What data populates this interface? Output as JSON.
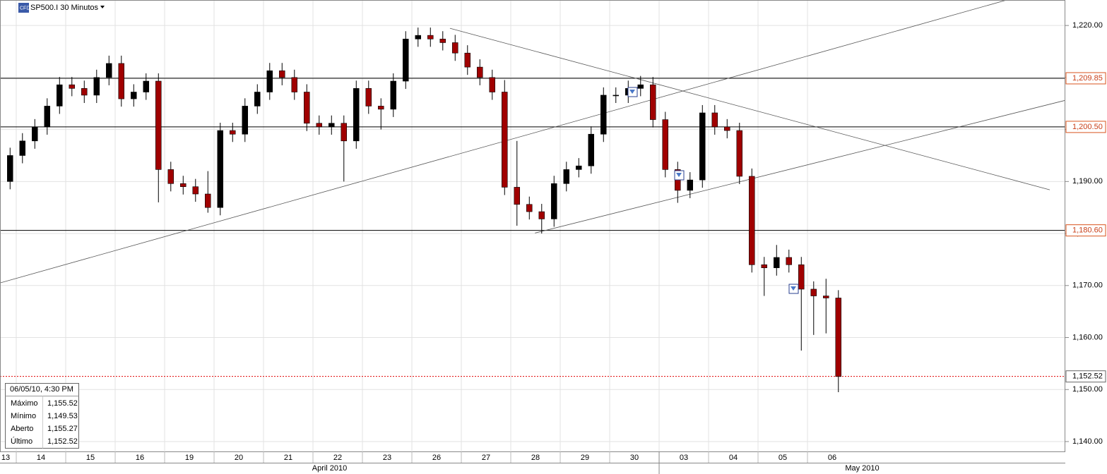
{
  "chart_data": {
    "type": "candlestick",
    "title": "SP500.I 30 Minutos",
    "x": [
      0.875,
      1.125,
      1.375,
      1.625,
      1.875,
      2.125,
      2.375,
      2.625,
      2.875,
      3.125,
      3.375,
      3.625,
      3.875,
      4.125,
      4.375,
      4.625,
      4.875,
      5.125,
      5.375,
      5.625,
      5.875,
      6.125,
      6.375,
      6.625,
      6.875,
      7.125,
      7.375,
      7.625,
      7.875,
      8.125,
      8.375,
      8.625,
      8.875,
      9.125,
      9.375,
      9.625,
      9.875,
      10.125,
      10.375,
      10.625,
      10.875,
      11.125,
      11.375,
      11.625,
      11.875,
      12.125,
      12.375,
      12.625,
      12.875,
      13.125,
      13.375,
      13.625,
      13.875,
      14.125,
      14.375,
      14.625,
      14.875,
      15.125,
      15.375,
      15.625,
      15.875,
      16.125,
      16.375,
      16.625,
      16.875,
      17.125,
      17.375,
      17.625
    ],
    "open": [
      1190.0,
      1195.0,
      1197.8,
      1200.5,
      1204.5,
      1208.6,
      1207.9,
      1206.6,
      1210.0,
      1212.7,
      1205.9,
      1207.2,
      1209.3,
      1192.3,
      1189.6,
      1189.0,
      1187.6,
      1185.0,
      1199.8,
      1199.1,
      1204.5,
      1207.2,
      1211.3,
      1210.0,
      1207.2,
      1201.2,
      1200.5,
      1201.2,
      1197.8,
      1207.9,
      1204.5,
      1203.9,
      1209.3,
      1217.4,
      1218.1,
      1217.4,
      1216.7,
      1214.7,
      1212.0,
      1210.0,
      1207.2,
      1188.9,
      1185.6,
      1184.2,
      1182.8,
      1189.6,
      1192.3,
      1193.0,
      1199.1,
      1206.6,
      1206.6,
      1207.9,
      1208.6,
      1201.9,
      1192.3,
      1188.3,
      1190.3,
      1203.2,
      1200.5,
      1199.8,
      1191.0,
      1174.0,
      1173.4,
      1175.4,
      1174.0,
      1169.3,
      1168.0,
      1167.6
    ],
    "high": [
      1196.5,
      1199.3,
      1202.0,
      1206.0,
      1210.1,
      1210.1,
      1209.4,
      1211.5,
      1214.2,
      1214.2,
      1208.7,
      1210.8,
      1210.8,
      1193.8,
      1191.1,
      1190.5,
      1192.0,
      1201.3,
      1201.3,
      1206.0,
      1208.7,
      1212.8,
      1212.8,
      1211.5,
      1208.7,
      1202.7,
      1202.7,
      1202.7,
      1209.4,
      1209.4,
      1206.0,
      1210.8,
      1218.9,
      1219.6,
      1219.6,
      1218.9,
      1218.2,
      1216.2,
      1213.5,
      1211.5,
      1209.5,
      1197.8,
      1187.1,
      1185.7,
      1191.1,
      1193.8,
      1194.5,
      1200.6,
      1208.1,
      1208.1,
      1209.4,
      1210.3,
      1210.1,
      1203.4,
      1193.8,
      1191.8,
      1204.7,
      1204.7,
      1202.0,
      1201.3,
      1192.5,
      1175.5,
      1177.8,
      1176.9,
      1175.5,
      1170.8,
      1171.3,
      1169.1
    ],
    "low": [
      1188.5,
      1193.5,
      1196.3,
      1199.0,
      1203.0,
      1206.4,
      1205.1,
      1205.1,
      1208.5,
      1204.4,
      1204.4,
      1205.7,
      1186.0,
      1188.1,
      1187.5,
      1186.1,
      1184.0,
      1183.5,
      1197.6,
      1197.6,
      1203.0,
      1205.7,
      1208.5,
      1205.7,
      1199.7,
      1199.0,
      1199.0,
      1190.0,
      1196.3,
      1203.0,
      1200.0,
      1202.4,
      1207.8,
      1215.9,
      1215.9,
      1215.2,
      1213.2,
      1210.5,
      1208.5,
      1205.7,
      1187.4,
      1181.5,
      1182.7,
      1180.0,
      1181.3,
      1188.1,
      1190.8,
      1191.5,
      1197.6,
      1205.1,
      1205.1,
      1206.4,
      1200.4,
      1190.8,
      1185.9,
      1186.8,
      1188.8,
      1199.0,
      1198.3,
      1189.5,
      1172.5,
      1168.0,
      1171.9,
      1172.5,
      1157.5,
      1160.5,
      1160.8,
      1149.5
    ],
    "close": [
      1195.0,
      1197.8,
      1200.5,
      1204.5,
      1208.6,
      1207.9,
      1206.6,
      1210.0,
      1212.7,
      1205.9,
      1207.2,
      1209.3,
      1192.3,
      1189.6,
      1189.0,
      1187.6,
      1185.0,
      1199.8,
      1199.1,
      1204.5,
      1207.2,
      1211.3,
      1210.0,
      1207.2,
      1201.2,
      1200.5,
      1201.2,
      1197.8,
      1207.9,
      1204.5,
      1203.9,
      1209.3,
      1217.4,
      1218.1,
      1217.4,
      1216.7,
      1214.7,
      1212.0,
      1210.0,
      1207.2,
      1188.9,
      1185.6,
      1184.2,
      1182.8,
      1189.6,
      1192.3,
      1193.0,
      1199.1,
      1206.6,
      1206.6,
      1207.9,
      1208.6,
      1201.9,
      1192.3,
      1188.3,
      1190.3,
      1203.2,
      1200.5,
      1199.8,
      1191.0,
      1174.0,
      1173.4,
      1175.4,
      1174.0,
      1169.3,
      1168.0,
      1167.6,
      1152.5
    ],
    "up_color": "#000000",
    "down_color": "#a00000",
    "xlim": [
      0.671,
      22.214
    ],
    "ylim": [
      1138.1,
      1224.9
    ],
    "xticks": [
      {
        "value": 0,
        "label": "13"
      },
      {
        "value": 1,
        "label": "14"
      },
      {
        "value": 2,
        "label": "15"
      },
      {
        "value": 3,
        "label": "16"
      },
      {
        "value": 4,
        "label": "19"
      },
      {
        "value": 5,
        "label": "20"
      },
      {
        "value": 6,
        "label": "21"
      },
      {
        "value": 7,
        "label": "22"
      },
      {
        "value": 8,
        "label": "23"
      },
      {
        "value": 9,
        "label": "26"
      },
      {
        "value": 10,
        "label": "27"
      },
      {
        "value": 11,
        "label": "28"
      },
      {
        "value": 12,
        "label": "29"
      },
      {
        "value": 13,
        "label": "30"
      },
      {
        "value": 14,
        "label": "03"
      },
      {
        "value": 15,
        "label": "04"
      },
      {
        "value": 16,
        "label": "05"
      },
      {
        "value": 17,
        "label": "06"
      }
    ],
    "month_ticks": [
      {
        "value": 0,
        "label": "April 2010"
      },
      {
        "value": 14,
        "label": "May 2010"
      }
    ],
    "yticks": [
      {
        "value": 1140,
        "label": "1,140.00"
      },
      {
        "value": 1150,
        "label": "1,150.00"
      },
      {
        "value": 1160,
        "label": "1,160.00"
      },
      {
        "value": 1170,
        "label": "1,170.00"
      },
      {
        "value": 1180,
        "label": "1,180.00"
      },
      {
        "value": 1190,
        "label": "1,190.00"
      },
      {
        "value": 1200,
        "label": "1,200.00"
      },
      {
        "value": 1210,
        "label": "1,210.00"
      },
      {
        "value": 1220,
        "label": "1,220.00"
      }
    ],
    "grid": true,
    "hlines": [
      {
        "value": 1209.85,
        "label": "1,209.85"
      },
      {
        "value": 1200.5,
        "label": "1,200.50"
      },
      {
        "value": 1180.6,
        "label": "1,180.60"
      }
    ],
    "last_price": {
      "value": 1152.52,
      "label": "1,152.52"
    },
    "trendlines": [
      {
        "x": [
          0.671,
          21.03
        ],
        "y": [
          1170.5,
          1224.9
        ]
      },
      {
        "x": [
          9.77,
          21.9
        ],
        "y": [
          1219.46,
          1188.4
        ]
      },
      {
        "x": [
          11.49,
          22.21
        ],
        "y": [
          1180.1,
          1205.6
        ]
      }
    ]
  },
  "info_box": {
    "header": "06/05/10, 4:30 PM",
    "rows": [
      [
        "Máximo",
        "1,155.52"
      ],
      [
        "Mínimo",
        "1,149.53"
      ],
      [
        "Aberto",
        "1,155.27"
      ],
      [
        "Último",
        "1,152.52"
      ]
    ]
  }
}
